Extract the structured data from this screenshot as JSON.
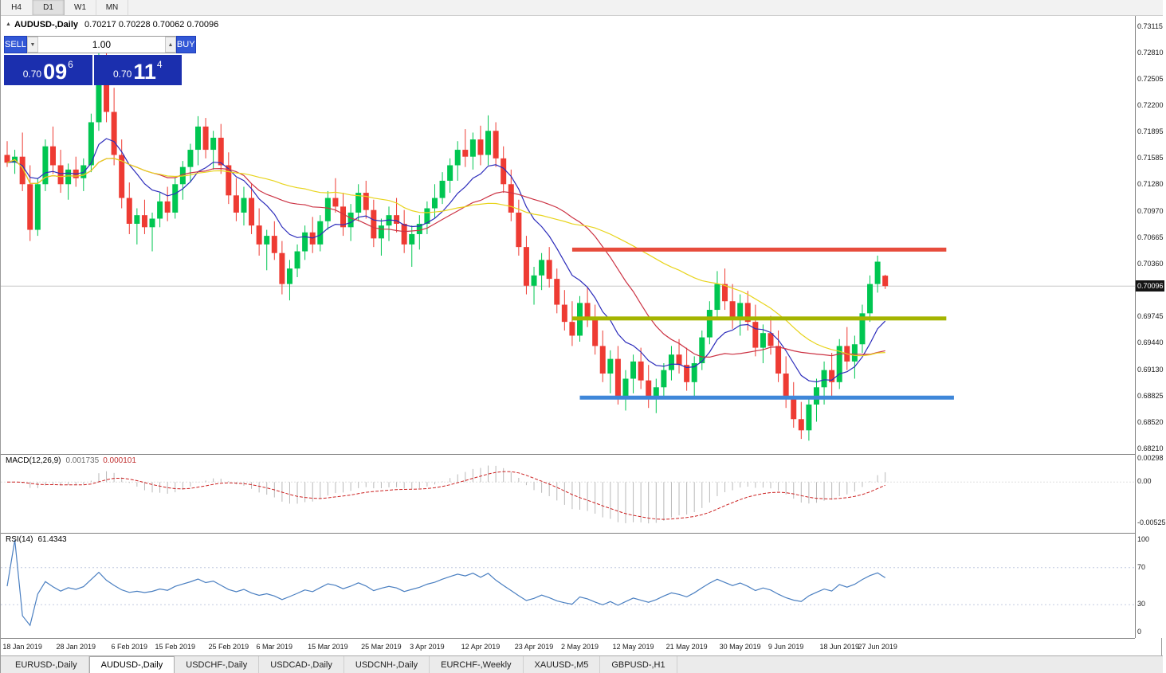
{
  "toolbar": {
    "timeframes": [
      "H4",
      "D1",
      "W1",
      "MN"
    ],
    "active_timeframe": "D1"
  },
  "header": {
    "symbol": "AUDUSD-,Daily",
    "ohlc": "0.70217 0.70228 0.70062 0.70096"
  },
  "trade_panel": {
    "sell_label": "SELL",
    "buy_label": "BUY",
    "volume": "1.00",
    "volume_down_icon": "▼",
    "volume_up_icon": "▲",
    "sell_price_prefix": "0.70",
    "sell_price_big": "09",
    "sell_price_sup": "6",
    "buy_price_prefix": "0.70",
    "buy_price_big": "11",
    "buy_price_sup": "4"
  },
  "price_axis": {
    "labels": [
      "0.73115",
      "0.72810",
      "0.72505",
      "0.72200",
      "0.71895",
      "0.71585",
      "0.71280",
      "0.70970",
      "0.70665",
      "0.70360",
      "0.69745",
      "0.69440",
      "0.69130",
      "0.68825",
      "0.68520",
      "0.68210"
    ],
    "current": "0.70096"
  },
  "indicators": {
    "macd": {
      "name": "MACD(12,26,9)",
      "value_main": "0.001735",
      "value_signal": "0.000101",
      "axis_labels": [
        {
          "v": 0.00298,
          "t": "0.00298"
        },
        {
          "v": 0,
          "t": "0.00"
        },
        {
          "v": -0.00525,
          "t": "-0.00525"
        }
      ]
    },
    "rsi": {
      "name": "RSI(14)",
      "value": "61.4343",
      "axis_labels": [
        {
          "v": 100,
          "t": "100"
        },
        {
          "v": 70,
          "t": "70"
        },
        {
          "v": 30,
          "t": "30"
        },
        {
          "v": 0,
          "t": "0"
        }
      ]
    }
  },
  "tabs": [
    "EURUSD-,Daily",
    "AUDUSD-,Daily",
    "USDCHF-,Daily",
    "USDCAD-,Daily",
    "USDCNH-,Daily",
    "EURCHF-,Weekly",
    "XAUUSD-,M5",
    "GBPUSD-,H1"
  ],
  "active_tab_index": 1,
  "chart_data": {
    "type": "candlestick",
    "symbol": "AUDUSD",
    "timeframe": "Daily",
    "price_range": [
      0.6821,
      0.73115
    ],
    "colors": {
      "up": "#00c651",
      "down": "#ee3b33",
      "grid_current_price": "#c8c8c8",
      "macd_histogram": "#b9b9b9",
      "macd_signal": "#cc2222",
      "rsi_line": "#4a7fc1",
      "rsi_levels": "#c4cbe0"
    },
    "moving_averages": [
      {
        "period": 10,
        "method": "ema",
        "color": "#2c2cbb"
      },
      {
        "period": 20,
        "method": "sma",
        "color": "#cc3344"
      },
      {
        "period": 40,
        "method": "sma",
        "color": "#e8d41c"
      }
    ],
    "hlines": [
      {
        "price": 0.7052,
        "color": "#e74c3c",
        "thickness": 5,
        "from_index": 74,
        "to_index": 123
      },
      {
        "price": 0.6972,
        "color": "#a4b400",
        "thickness": 5,
        "from_index": 74,
        "to_index": 123
      },
      {
        "price": 0.688,
        "color": "#3f87d9",
        "thickness": 5,
        "from_index": 75,
        "to_index": 124
      }
    ],
    "macd": {
      "fast": 12,
      "slow": 26,
      "signal": 9,
      "range": [
        -0.0058,
        0.0031
      ]
    },
    "rsi": {
      "period": 14,
      "levels": [
        70,
        30
      ],
      "current": 61.4343
    },
    "date_ticks": [
      {
        "i": 2,
        "label": "18 Jan 2019"
      },
      {
        "i": 9,
        "label": "28 Jan 2019"
      },
      {
        "i": 16,
        "label": "6 Feb 2019"
      },
      {
        "i": 22,
        "label": "15 Feb 2019"
      },
      {
        "i": 29,
        "label": "25 Feb 2019"
      },
      {
        "i": 35,
        "label": "6 Mar 2019"
      },
      {
        "i": 42,
        "label": "15 Mar 2019"
      },
      {
        "i": 49,
        "label": "25 Mar 2019"
      },
      {
        "i": 55,
        "label": "3 Apr 2019"
      },
      {
        "i": 62,
        "label": "12 Apr 2019"
      },
      {
        "i": 69,
        "label": "23 Apr 2019"
      },
      {
        "i": 75,
        "label": "2 May 2019"
      },
      {
        "i": 82,
        "label": "12 May 2019"
      },
      {
        "i": 89,
        "label": "21 May 2019"
      },
      {
        "i": 96,
        "label": "30 May 2019"
      },
      {
        "i": 102,
        "label": "9 Jun 2019"
      },
      {
        "i": 109,
        "label": "18 Jun 2019"
      },
      {
        "i": 114,
        "label": "27 Jun 2019"
      }
    ],
    "candles": [
      [
        0.7162,
        0.7178,
        0.7148,
        0.7153
      ],
      [
        0.7153,
        0.7168,
        0.714,
        0.716
      ],
      [
        0.716,
        0.7188,
        0.712,
        0.7128
      ],
      [
        0.7128,
        0.715,
        0.7062,
        0.7075
      ],
      [
        0.7075,
        0.7135,
        0.7068,
        0.7128
      ],
      [
        0.7128,
        0.718,
        0.712,
        0.7172
      ],
      [
        0.7172,
        0.7195,
        0.714,
        0.715
      ],
      [
        0.715,
        0.7168,
        0.7118,
        0.7128
      ],
      [
        0.7128,
        0.7152,
        0.711,
        0.7145
      ],
      [
        0.7145,
        0.716,
        0.7125,
        0.7135
      ],
      [
        0.7135,
        0.7158,
        0.712,
        0.715
      ],
      [
        0.715,
        0.721,
        0.7142,
        0.72
      ],
      [
        0.72,
        0.7295,
        0.719,
        0.7272
      ],
      [
        0.7272,
        0.728,
        0.72,
        0.7212
      ],
      [
        0.7212,
        0.724,
        0.715,
        0.7162
      ],
      [
        0.7162,
        0.718,
        0.71,
        0.7112
      ],
      [
        0.7112,
        0.713,
        0.707,
        0.7082
      ],
      [
        0.7082,
        0.71,
        0.7058,
        0.7092
      ],
      [
        0.7092,
        0.711,
        0.707,
        0.7078
      ],
      [
        0.7078,
        0.7095,
        0.705,
        0.7088
      ],
      [
        0.7088,
        0.7118,
        0.7078,
        0.7108
      ],
      [
        0.7108,
        0.7125,
        0.7085,
        0.7095
      ],
      [
        0.7095,
        0.7135,
        0.7088,
        0.7128
      ],
      [
        0.7128,
        0.7155,
        0.711,
        0.7148
      ],
      [
        0.7148,
        0.7175,
        0.713,
        0.7168
      ],
      [
        0.7168,
        0.7207,
        0.715,
        0.7195
      ],
      [
        0.7195,
        0.7205,
        0.7158,
        0.7168
      ],
      [
        0.7168,
        0.719,
        0.7145,
        0.7182
      ],
      [
        0.7182,
        0.7198,
        0.714,
        0.715
      ],
      [
        0.715,
        0.7165,
        0.7105,
        0.7115
      ],
      [
        0.7115,
        0.7135,
        0.7085,
        0.7095
      ],
      [
        0.7095,
        0.7125,
        0.708,
        0.7112
      ],
      [
        0.7112,
        0.7128,
        0.707,
        0.708
      ],
      [
        0.708,
        0.71,
        0.7045,
        0.7058
      ],
      [
        0.7058,
        0.7075,
        0.7028,
        0.7068
      ],
      [
        0.7068,
        0.7085,
        0.704,
        0.7048
      ],
      [
        0.7048,
        0.7062,
        0.7,
        0.7012
      ],
      [
        0.7012,
        0.704,
        0.6993,
        0.703
      ],
      [
        0.703,
        0.7058,
        0.702,
        0.705
      ],
      [
        0.705,
        0.708,
        0.704,
        0.7072
      ],
      [
        0.7072,
        0.709,
        0.7048,
        0.7058
      ],
      [
        0.7058,
        0.7092,
        0.705,
        0.7085
      ],
      [
        0.7085,
        0.712,
        0.7075,
        0.7112
      ],
      [
        0.7112,
        0.7135,
        0.7095,
        0.7102
      ],
      [
        0.7102,
        0.7118,
        0.7068,
        0.7078
      ],
      [
        0.7078,
        0.7105,
        0.7062,
        0.7095
      ],
      [
        0.7095,
        0.7128,
        0.7085,
        0.7118
      ],
      [
        0.7118,
        0.7132,
        0.7088,
        0.7098
      ],
      [
        0.7098,
        0.711,
        0.7055,
        0.7065
      ],
      [
        0.7065,
        0.7088,
        0.7045,
        0.708
      ],
      [
        0.708,
        0.7102,
        0.7062,
        0.7092
      ],
      [
        0.7092,
        0.7112,
        0.7072,
        0.7082
      ],
      [
        0.7082,
        0.7098,
        0.7048,
        0.7058
      ],
      [
        0.7058,
        0.708,
        0.7032,
        0.707
      ],
      [
        0.707,
        0.7092,
        0.7052,
        0.7082
      ],
      [
        0.7082,
        0.7108,
        0.707,
        0.71
      ],
      [
        0.71,
        0.7128,
        0.7088,
        0.7112
      ],
      [
        0.7112,
        0.7142,
        0.7105,
        0.7132
      ],
      [
        0.7132,
        0.7158,
        0.7118,
        0.715
      ],
      [
        0.715,
        0.7178,
        0.7132,
        0.7168
      ],
      [
        0.7168,
        0.7192,
        0.7148,
        0.716
      ],
      [
        0.716,
        0.7188,
        0.7145,
        0.718
      ],
      [
        0.718,
        0.7196,
        0.715,
        0.7162
      ],
      [
        0.7162,
        0.7208,
        0.715,
        0.719
      ],
      [
        0.719,
        0.72,
        0.7148,
        0.7158
      ],
      [
        0.7158,
        0.7172,
        0.7118,
        0.7128
      ],
      [
        0.7128,
        0.7145,
        0.7085,
        0.7095
      ],
      [
        0.7095,
        0.711,
        0.7045,
        0.7055
      ],
      [
        0.7055,
        0.7068,
        0.7,
        0.701
      ],
      [
        0.701,
        0.7032,
        0.6988,
        0.7022
      ],
      [
        0.7022,
        0.7048,
        0.7005,
        0.704
      ],
      [
        0.704,
        0.7055,
        0.7008,
        0.7018
      ],
      [
        0.7018,
        0.703,
        0.6978,
        0.6988
      ],
      [
        0.6988,
        0.7005,
        0.6958,
        0.6968
      ],
      [
        0.6968,
        0.6992,
        0.694,
        0.6952
      ],
      [
        0.6952,
        0.6998,
        0.6945,
        0.699
      ],
      [
        0.699,
        0.7008,
        0.6962,
        0.6972
      ],
      [
        0.6972,
        0.6988,
        0.693,
        0.694
      ],
      [
        0.694,
        0.6958,
        0.6898,
        0.6908
      ],
      [
        0.6908,
        0.6935,
        0.6885,
        0.6925
      ],
      [
        0.6925,
        0.694,
        0.6872,
        0.6882
      ],
      [
        0.6882,
        0.6912,
        0.6865,
        0.6902
      ],
      [
        0.6902,
        0.693,
        0.6885,
        0.6922
      ],
      [
        0.6922,
        0.6938,
        0.689,
        0.69
      ],
      [
        0.69,
        0.6918,
        0.6868,
        0.6878
      ],
      [
        0.6878,
        0.6902,
        0.6862,
        0.6892
      ],
      [
        0.6892,
        0.692,
        0.688,
        0.6912
      ],
      [
        0.6912,
        0.694,
        0.69,
        0.693
      ],
      [
        0.693,
        0.6948,
        0.6908,
        0.6918
      ],
      [
        0.6918,
        0.6938,
        0.6888,
        0.6898
      ],
      [
        0.6898,
        0.6928,
        0.6882,
        0.692
      ],
      [
        0.692,
        0.6958,
        0.6912,
        0.695
      ],
      [
        0.695,
        0.6992,
        0.6942,
        0.6982
      ],
      [
        0.6982,
        0.7027,
        0.6972,
        0.7012
      ],
      [
        0.7012,
        0.703,
        0.6982,
        0.6992
      ],
      [
        0.6992,
        0.7012,
        0.696,
        0.6972
      ],
      [
        0.6972,
        0.7,
        0.6952,
        0.699
      ],
      [
        0.699,
        0.7004,
        0.6958,
        0.6968
      ],
      [
        0.6968,
        0.6988,
        0.6928,
        0.6938
      ],
      [
        0.6938,
        0.6965,
        0.692,
        0.6955
      ],
      [
        0.6955,
        0.6975,
        0.693,
        0.694
      ],
      [
        0.694,
        0.6958,
        0.6898,
        0.6908
      ],
      [
        0.6908,
        0.6928,
        0.6868,
        0.6878
      ],
      [
        0.6878,
        0.6898,
        0.6845,
        0.6855
      ],
      [
        0.6855,
        0.6875,
        0.6832,
        0.6842
      ],
      [
        0.6842,
        0.6882,
        0.683,
        0.6872
      ],
      [
        0.6872,
        0.6902,
        0.6852,
        0.6892
      ],
      [
        0.6892,
        0.6922,
        0.6872,
        0.6912
      ],
      [
        0.6912,
        0.6932,
        0.688,
        0.6898
      ],
      [
        0.6898,
        0.6948,
        0.689,
        0.694
      ],
      [
        0.694,
        0.6962,
        0.6912,
        0.6922
      ],
      [
        0.6922,
        0.6952,
        0.6902,
        0.6942
      ],
      [
        0.6942,
        0.6988,
        0.6932,
        0.6978
      ],
      [
        0.6978,
        0.7022,
        0.6968,
        0.7012
      ],
      [
        0.7012,
        0.7045,
        0.7002,
        0.7038
      ],
      [
        0.70217,
        0.70228,
        0.70062,
        0.70096
      ]
    ]
  }
}
